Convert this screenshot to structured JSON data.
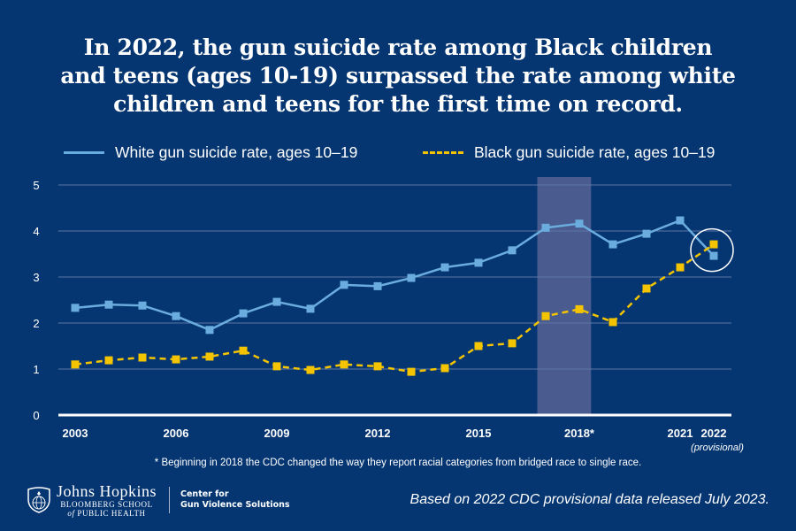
{
  "title_lines": [
    "In 2022, the gun suicide rate among Black children",
    "and teens (ages 10-19) surpassed the rate among white",
    "children and teens for the first time on record."
  ],
  "footnote": "* Beginning in 2018 the CDC changed the way they report racial categories from bridged race to single race.",
  "source_note": "Based on 2022 CDC provisional data released July 2023.",
  "logo": {
    "name": "Johns Hopkins",
    "sub1": "BLOOMBERG SCHOOL",
    "sub2_prefix": "of",
    "sub2": "PUBLIC HEALTH",
    "center_line1": "Center for",
    "center_line2": "Gun Violence Solutions"
  },
  "colors": {
    "background": "#053672",
    "white_series": "#6aacde",
    "black_series": "#f5c400",
    "highlight_band": "#4a5c8f"
  },
  "chart_data": {
    "type": "line",
    "title": "In 2022, the gun suicide rate among Black children and teens (ages 10-19) surpassed the rate among white children and teens for the first time on record.",
    "xlabel": "",
    "ylabel": "",
    "x": [
      2003,
      2004,
      2005,
      2006,
      2007,
      2008,
      2009,
      2010,
      2011,
      2012,
      2013,
      2014,
      2015,
      2016,
      2017,
      2018,
      2019,
      2020,
      2021,
      2022
    ],
    "xlim": [
      2003,
      2022
    ],
    "ylim": [
      0,
      5
    ],
    "y_ticks": [
      0,
      1,
      2,
      3,
      4,
      5
    ],
    "x_ticks": [
      {
        "value": 2003,
        "label": "2003"
      },
      {
        "value": 2006,
        "label": "2006"
      },
      {
        "value": 2009,
        "label": "2009"
      },
      {
        "value": 2012,
        "label": "2012"
      },
      {
        "value": 2015,
        "label": "2015"
      },
      {
        "value": 2018,
        "label": "2018*"
      },
      {
        "value": 2021,
        "label": "2021"
      },
      {
        "value": 2022,
        "label": "2022",
        "sublabel": "(provisional)"
      }
    ],
    "grid": true,
    "legend_position": "top",
    "series": [
      {
        "name": "White gun suicide rate, ages 10–19",
        "style": "solid",
        "values": [
          2.33,
          2.4,
          2.38,
          2.15,
          1.85,
          2.21,
          2.46,
          2.31,
          2.83,
          2.8,
          2.98,
          3.21,
          3.31,
          3.58,
          4.07,
          4.16,
          3.71,
          3.94,
          4.23,
          3.46
        ]
      },
      {
        "name": "Black gun suicide rate, ages 10–19",
        "style": "dashed",
        "values": [
          1.1,
          1.19,
          1.25,
          1.21,
          1.27,
          1.4,
          1.06,
          0.98,
          1.1,
          1.06,
          0.94,
          1.02,
          1.5,
          1.56,
          2.15,
          2.3,
          2.02,
          2.75,
          3.21,
          3.71
        ]
      }
    ],
    "annotations": [
      {
        "type": "shaded-band",
        "x_range": [
          2016.75,
          2018.35
        ],
        "note": "2018 change in racial category reporting"
      },
      {
        "type": "circle",
        "x": 2022,
        "note": "crossover point"
      }
    ]
  }
}
